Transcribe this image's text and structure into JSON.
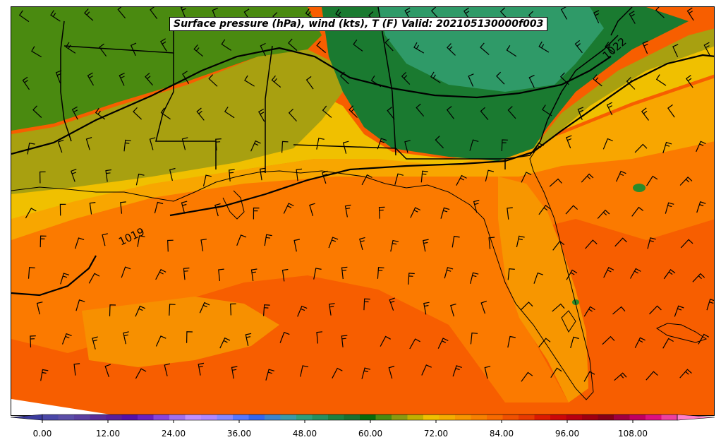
{
  "title": "Surface pressure (hPa), wind (kts), T (F) Valid: 202105130000f003",
  "isobar_labels": [
    {
      "id": "isobar-label-1019",
      "text": "1019"
    },
    {
      "id": "isobar-label-1022",
      "text": "1022"
    }
  ],
  "colorbar": {
    "tick_labels": [
      "0.00",
      "12.00",
      "24.00",
      "36.00",
      "48.00",
      "60.00",
      "72.00",
      "84.00",
      "96.00",
      "108.00"
    ],
    "colors": [
      "#3b3b9e",
      "#4a47a8",
      "#5b4ea8",
      "#5a3fa0",
      "#5a2d98",
      "#5a1f9a",
      "#5510a8",
      "#6a20c0",
      "#8844dd",
      "#a070ee",
      "#c090ff",
      "#b088ff",
      "#8888ff",
      "#5577ff",
      "#3366ee",
      "#3d84cc",
      "#3a9aa8",
      "#2f9e7a",
      "#259060",
      "#1e8040",
      "#1a7030",
      "#0a6a0a",
      "#4a8a10",
      "#8a9a10",
      "#c0b000",
      "#f0c000",
      "#f5ac00",
      "#f79600",
      "#f78000",
      "#f76a00",
      "#f05000",
      "#e83a00",
      "#dc1a00",
      "#cc0808",
      "#b80010",
      "#a00010",
      "#880018",
      "#a00040",
      "#c00060",
      "#dd1080",
      "#ee40a0",
      "#ff80cc"
    ]
  }
}
